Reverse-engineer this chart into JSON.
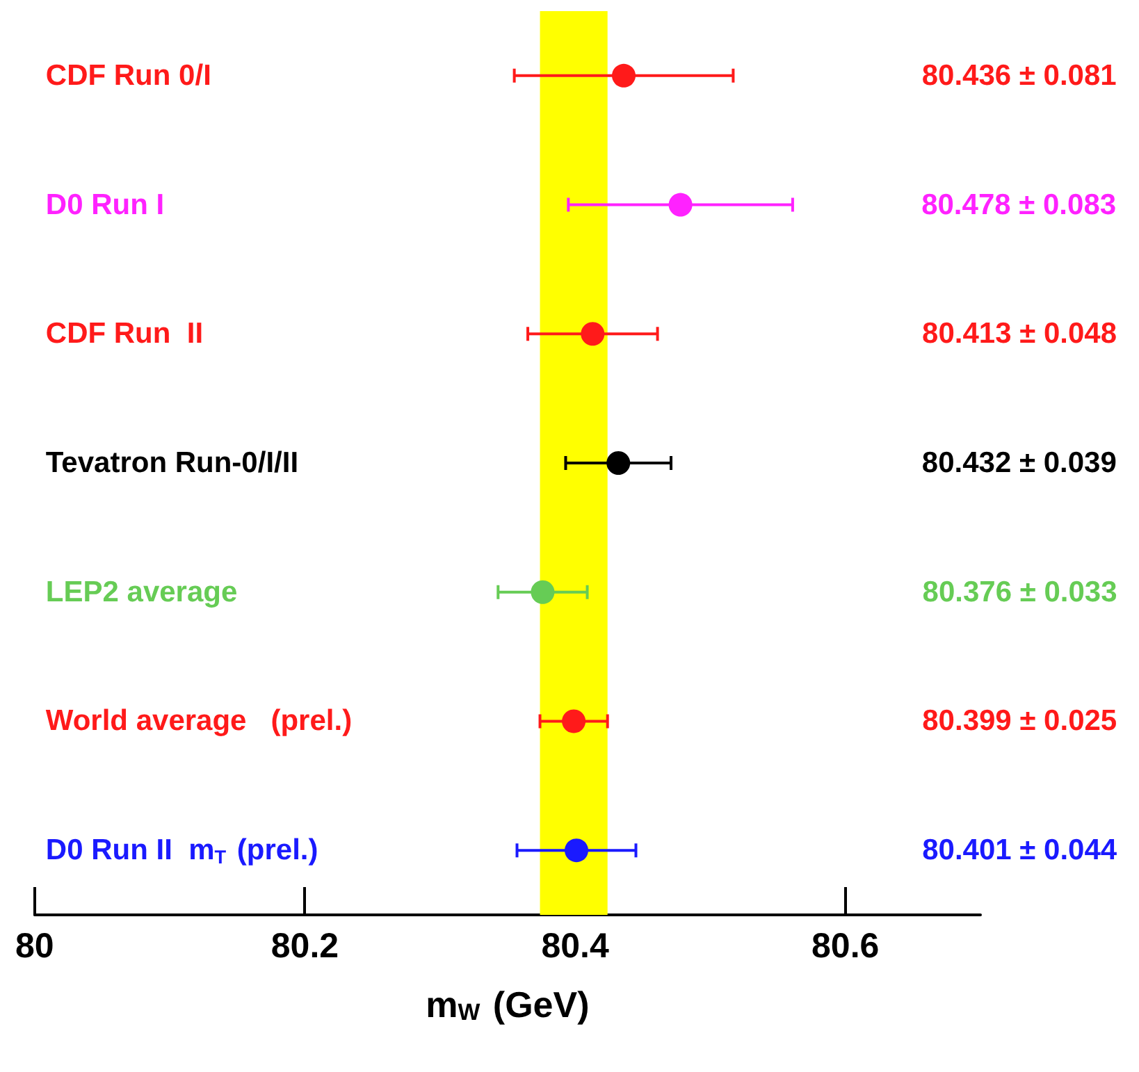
{
  "chart_data": {
    "type": "scatter",
    "orientation": "horizontal",
    "xlabel": "m$_{W}$ (GeV)",
    "categories": [
      "CDF Run 0/I",
      "D0 Run I",
      "CDF Run  II",
      "Tevatron Run-0/I/II",
      "LEP2 average",
      "World average   (prel.)",
      "D0 Run II  m$_{T}$ (prel.)"
    ],
    "values": [
      80.436,
      80.478,
      80.413,
      80.432,
      80.376,
      80.399,
      80.401
    ],
    "errors": [
      0.081,
      0.083,
      0.048,
      0.039,
      0.033,
      0.025,
      0.044
    ],
    "value_labels": [
      "80.436 ± 0.081",
      "80.478 ± 0.083",
      "80.413 ± 0.048",
      "80.432 ± 0.039",
      "80.376 ± 0.033",
      "80.399 ± 0.025",
      "80.401 ± 0.044"
    ],
    "colors": [
      "#ff1a1a",
      "#ff22ff",
      "#ff1a1a",
      "#000000",
      "#66cc55",
      "#ff1a1a",
      "#1a1aff"
    ],
    "xlim": [
      80,
      80.7
    ],
    "xticks": [
      80,
      80.2,
      80.4,
      80.6
    ],
    "bands": [
      {
        "axis": "x",
        "from": 80.374,
        "to": 80.424,
        "color": "#ffff00"
      }
    ],
    "marker": "circle",
    "grid": false
  }
}
